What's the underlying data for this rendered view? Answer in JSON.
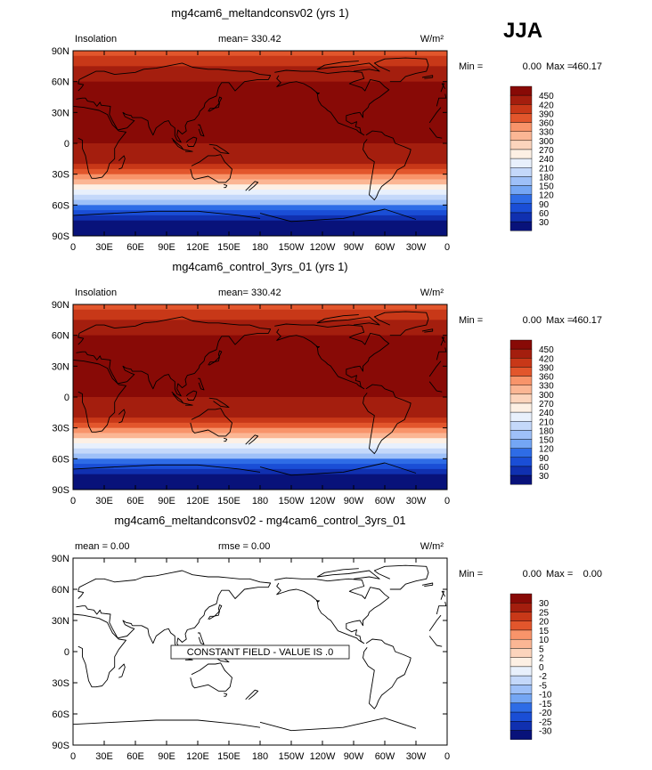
{
  "season_label": "JJA",
  "lat_ticks": [
    "90N",
    "60N",
    "30N",
    "0",
    "30S",
    "60S",
    "90S"
  ],
  "lon_ticks": [
    "0",
    "30E",
    "60E",
    "90E",
    "120E",
    "150E",
    "180",
    "150W",
    "120W",
    "90W",
    "60W",
    "30W",
    "0"
  ],
  "colors": {
    "ramp": [
      "#08127a",
      "#1030b0",
      "#1a4ed6",
      "#2e6ce6",
      "#4e8af0",
      "#74a6f4",
      "#9ec0f8",
      "#c4d8fa",
      "#e8f0fc",
      "#fdf0e4",
      "#fcd4bc",
      "#fbb694",
      "#f8946a",
      "#f07446",
      "#e2562c",
      "#c83818",
      "#a41e0e",
      "#880a06"
    ],
    "coast": "#000000"
  },
  "panels": [
    {
      "title": "mg4cam6_meltandconsv02 (yrs 1)",
      "left_label": "Insolation",
      "center_label": "mean=  330.42",
      "units": "W/m²",
      "min_label": "Min =",
      "min_value": "0.00",
      "max_label": "Max =",
      "max_value": "460.17",
      "field": "insolation",
      "colorbar_levels": [
        "450",
        "420",
        "390",
        "360",
        "330",
        "300",
        "270",
        "240",
        "210",
        "180",
        "150",
        "120",
        "90",
        "60",
        "30"
      ]
    },
    {
      "title": "mg4cam6_control_3yrs_01 (yrs 1)",
      "left_label": "Insolation",
      "center_label": "mean=  330.42",
      "units": "W/m²",
      "min_label": "Min =",
      "min_value": "0.00",
      "max_label": "Max =",
      "max_value": "460.17",
      "field": "insolation",
      "colorbar_levels": [
        "450",
        "420",
        "390",
        "360",
        "330",
        "300",
        "270",
        "240",
        "210",
        "180",
        "150",
        "120",
        "90",
        "60",
        "30"
      ]
    },
    {
      "title": "mg4cam6_meltandconsv02 - mg4cam6_control_3yrs_01",
      "left_label": "mean =    0.00",
      "center_label": "rmse =    0.00",
      "units": "W/m²",
      "min_label": "Min =",
      "min_value": "0.00",
      "max_label": "Max =",
      "max_value": "0.00",
      "field": "constant",
      "annotation": "CONSTANT FIELD - VALUE IS .0",
      "colorbar_levels": [
        "30",
        "25",
        "20",
        "15",
        "10",
        "5",
        "2",
        "0",
        "-2",
        "-5",
        "-10",
        "-15",
        "-20",
        "-25",
        "-30"
      ]
    }
  ]
}
